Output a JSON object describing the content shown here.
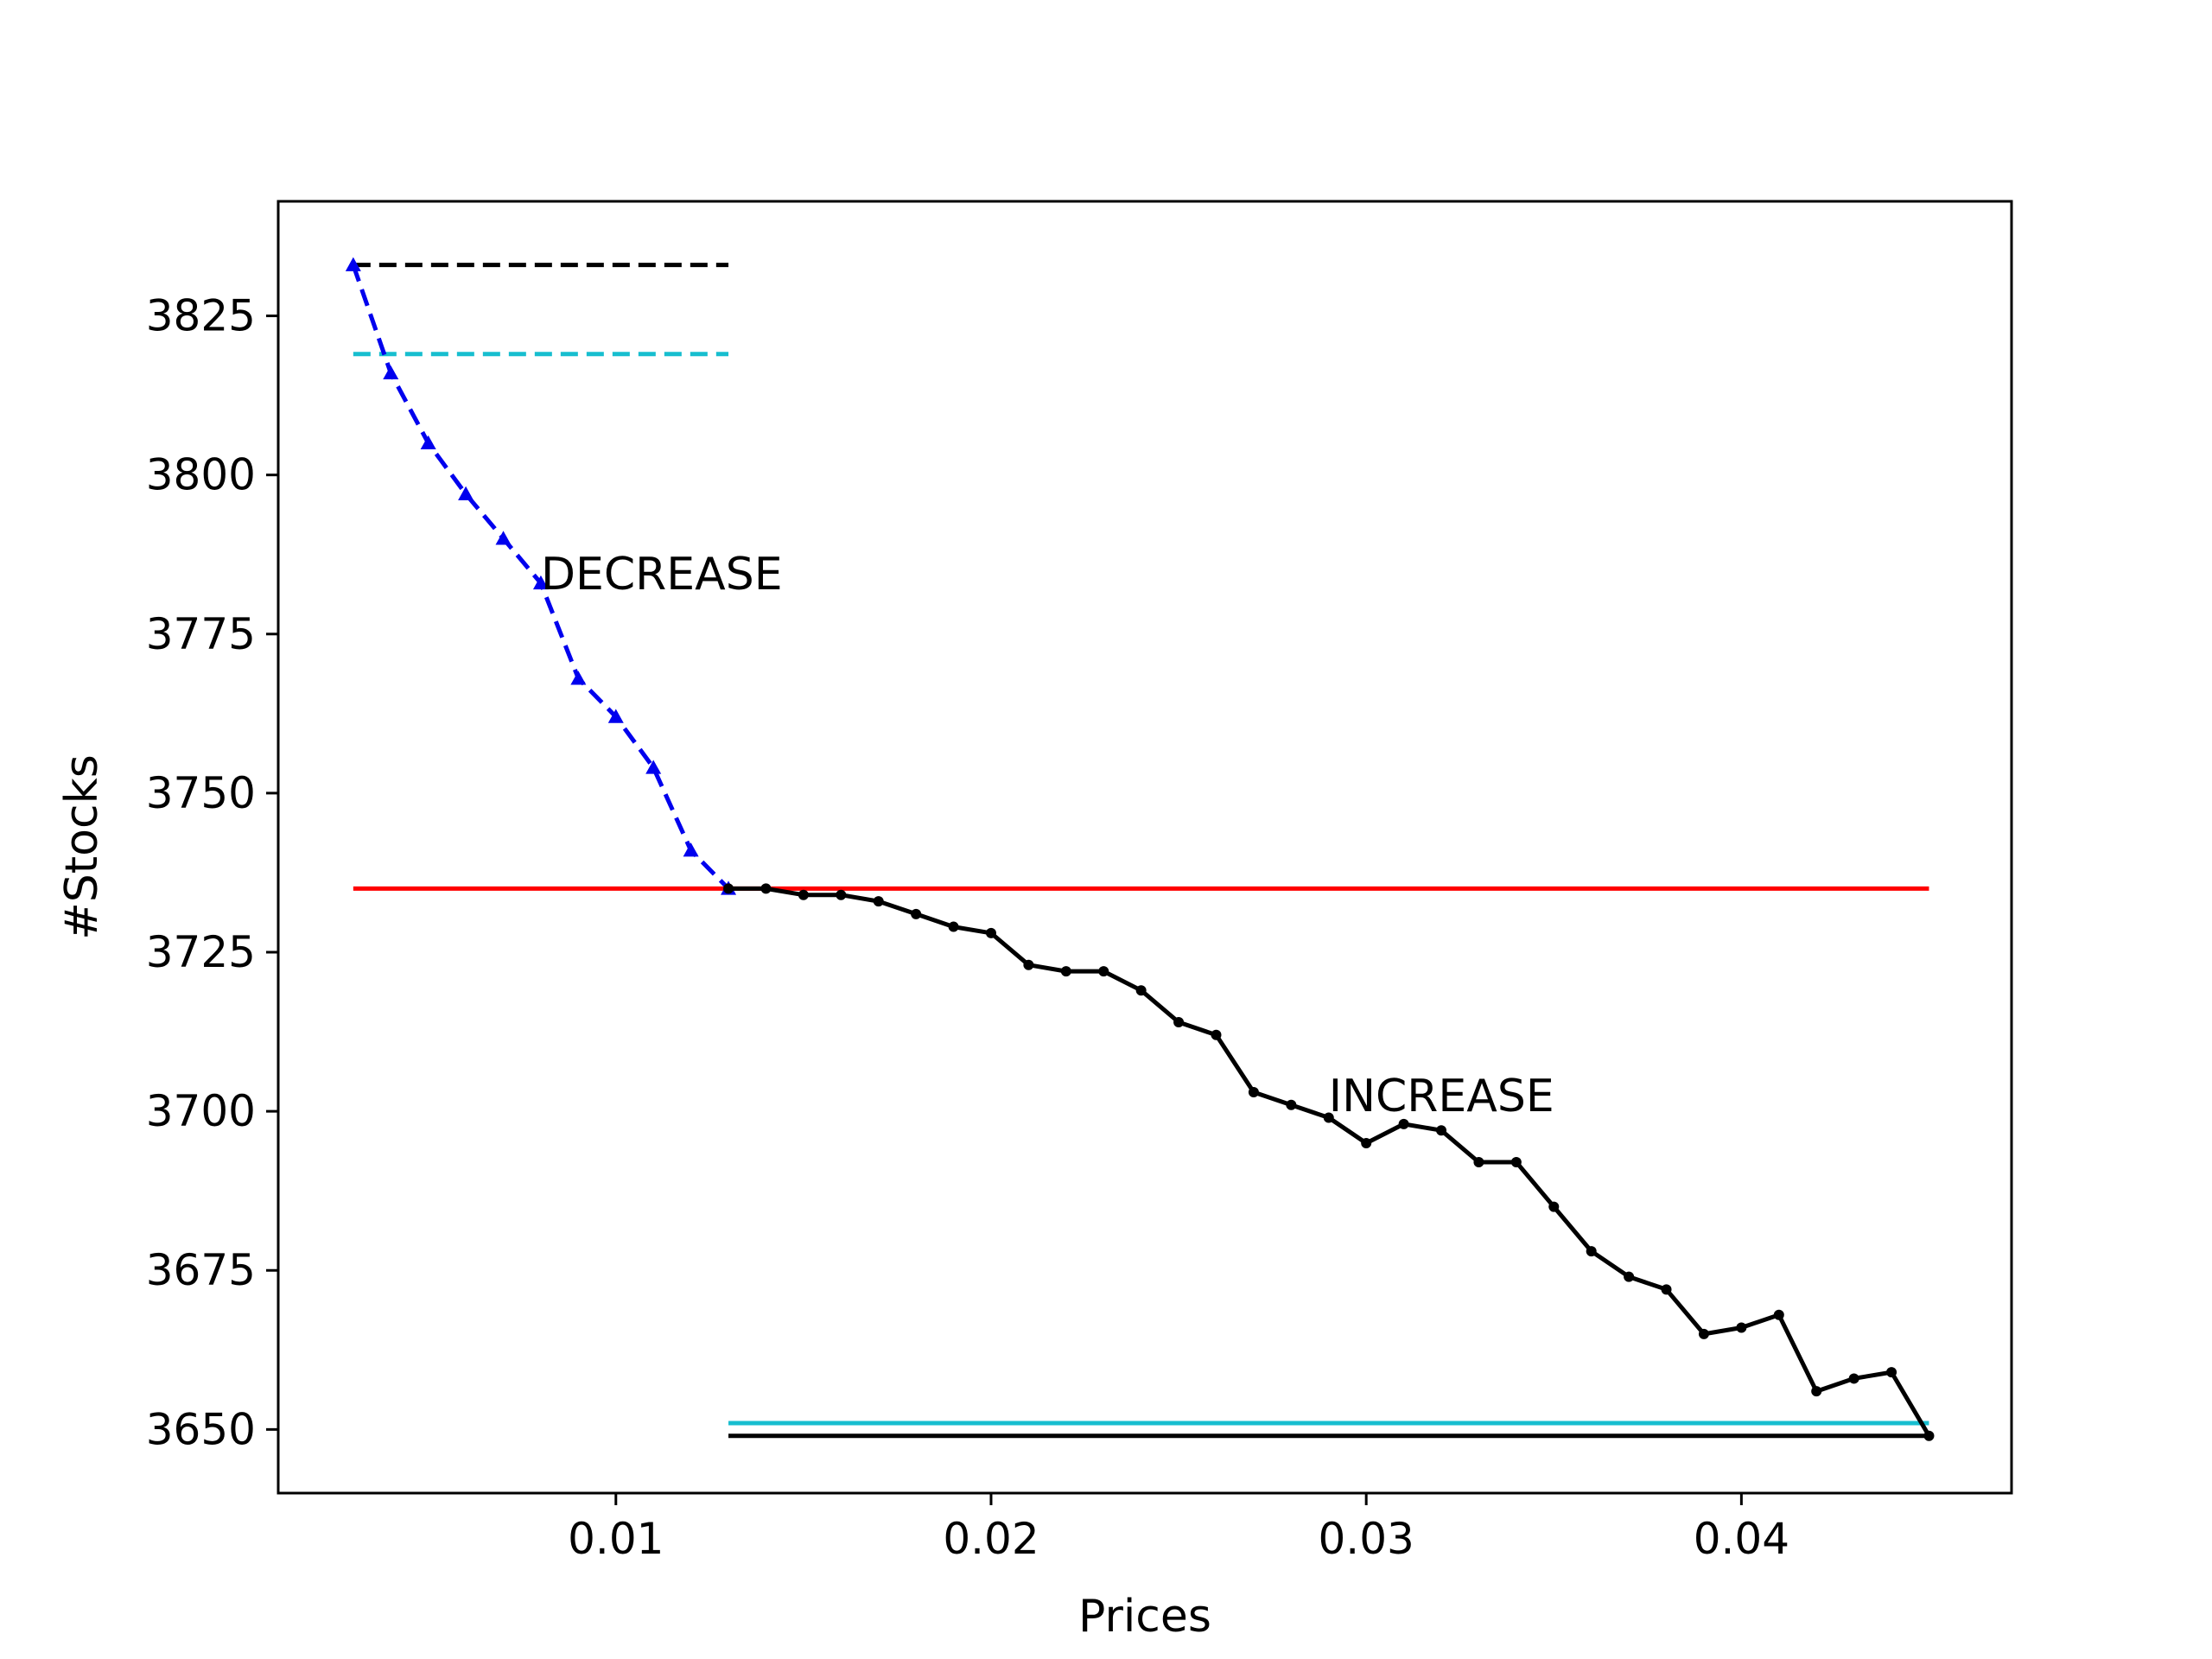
{
  "chart_data": {
    "type": "line",
    "title": "",
    "xlabel": "Prices",
    "ylabel": "#Stocks",
    "xlim": [
      0.001,
      0.0472
    ],
    "ylim": [
      3640,
      3843
    ],
    "xticks": [
      0.01,
      0.02,
      0.03,
      0.04
    ],
    "xtick_labels": [
      "0.01",
      "0.02",
      "0.03",
      "0.04"
    ],
    "yticks": [
      3650,
      3675,
      3700,
      3725,
      3750,
      3775,
      3800,
      3825
    ],
    "ytick_labels": [
      "3650",
      "3675",
      "3700",
      "3725",
      "3750",
      "3775",
      "3800",
      "3825"
    ],
    "grid": false,
    "legend": "none",
    "series": [
      {
        "key": "decrease",
        "color": "#0000ee",
        "line_style": "dashed",
        "marker": "triangle-up",
        "x": [
          0.003,
          0.004,
          0.005,
          0.006,
          0.007,
          0.008,
          0.009,
          0.01,
          0.011,
          0.012,
          0.013
        ],
        "y": [
          3833,
          3816,
          3805,
          3797,
          3790,
          3783,
          3768,
          3762,
          3754,
          3741,
          3735
        ]
      },
      {
        "key": "increase",
        "color": "#000000",
        "line_style": "solid",
        "marker": "dot",
        "x": [
          0.013,
          0.014,
          0.015,
          0.016,
          0.017,
          0.018,
          0.019,
          0.02,
          0.021,
          0.022,
          0.023,
          0.024,
          0.025,
          0.026,
          0.027,
          0.028,
          0.029,
          0.03,
          0.031,
          0.032,
          0.033,
          0.034,
          0.035,
          0.036,
          0.037,
          0.038,
          0.039,
          0.04,
          0.041,
          0.042,
          0.043,
          0.044,
          0.045
        ],
        "y": [
          3735,
          3735,
          3734,
          3734,
          3733,
          3731,
          3729,
          3728,
          3723,
          3722,
          3722,
          3719,
          3714,
          3712,
          3703,
          3701,
          3699,
          3695,
          3698,
          3697,
          3692,
          3692,
          3685,
          3678,
          3674,
          3672,
          3665,
          3666,
          3668,
          3656,
          3658,
          3659,
          3649
        ]
      }
    ],
    "reference_lines": [
      {
        "key": "top-black",
        "y": 3833,
        "x_from": 0.003,
        "x_to": 0.013,
        "color": "#000000",
        "line_style": "dashed"
      },
      {
        "key": "top-cyan",
        "y": 3819,
        "x_from": 0.003,
        "x_to": 0.013,
        "color": "#17becf",
        "line_style": "dashed"
      },
      {
        "key": "red",
        "y": 3735,
        "x_from": 0.003,
        "x_to": 0.045,
        "color": "#ff0000",
        "line_style": "solid"
      },
      {
        "key": "bottom-cyan",
        "y": 3651,
        "x_from": 0.013,
        "x_to": 0.045,
        "color": "#17becf",
        "line_style": "solid"
      },
      {
        "key": "bottom-black",
        "y": 3649,
        "x_from": 0.013,
        "x_to": 0.045,
        "color": "#000000",
        "line_style": "solid"
      }
    ],
    "annotations": [
      {
        "text": "DECREASE",
        "x": 0.008,
        "y": 3782
      },
      {
        "text": "INCREASE",
        "x": 0.029,
        "y": 3700
      }
    ]
  }
}
